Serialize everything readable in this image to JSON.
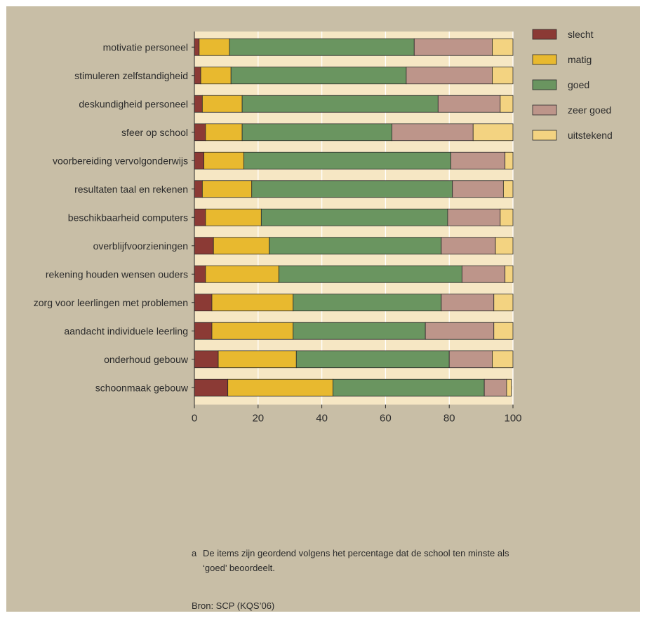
{
  "chart_data": {
    "type": "bar",
    "orientation": "horizontal",
    "stacked": true,
    "categories": [
      "motivatie personeel",
      "stimuleren zelfstandigheid",
      "deskundigheid personeel",
      "sfeer op school",
      "voorbereiding vervolgonderwijs",
      "resultaten taal en rekenen",
      "beschikbaarheid computers",
      "overblijfvoorzieningen",
      "rekening houden wensen ouders",
      "zorg voor leerlingen met problemen",
      "aandacht individuele leerling",
      "onderhoud gebouw",
      "schoonmaak gebouw"
    ],
    "series": [
      {
        "name": "slecht",
        "color": "#8b3a35",
        "values": [
          1.5,
          2,
          2.5,
          3.5,
          3,
          2.5,
          3.5,
          6,
          3.5,
          5.5,
          5.5,
          7.5,
          10.5
        ]
      },
      {
        "name": "matig",
        "color": "#e8b92f",
        "values": [
          9.5,
          9.5,
          12.5,
          11.5,
          12.5,
          15.5,
          17.5,
          17.5,
          23,
          25.5,
          25.5,
          24.5,
          33
        ]
      },
      {
        "name": "goed",
        "color": "#6a9560",
        "values": [
          58,
          55,
          61.5,
          47,
          65,
          63,
          58.5,
          54,
          57.5,
          46.5,
          41.5,
          48,
          47.5
        ]
      },
      {
        "name": "zeer goed",
        "color": "#bd958a",
        "values": [
          24.5,
          27,
          19.5,
          25.5,
          17,
          16,
          16.5,
          17,
          13.5,
          16.5,
          21.5,
          13.5,
          7
        ]
      },
      {
        "name": "uitstekend",
        "color": "#f3d381",
        "values": [
          6.5,
          6.5,
          4,
          12.5,
          2.5,
          3,
          4,
          5.5,
          2.5,
          6,
          6,
          6.5,
          1.5
        ]
      }
    ],
    "xlim": [
      0,
      100
    ],
    "xticks": [
      "0",
      "20",
      "40",
      "60",
      "80",
      "100"
    ],
    "grid": true,
    "legend": "top-right"
  },
  "footnote": {
    "marker": "a",
    "text": "De items zijn geordend volgens het percentage dat de school ten minste als ‘goed’ beoordeelt."
  },
  "source": "Bron: SCP (KQS’06)"
}
